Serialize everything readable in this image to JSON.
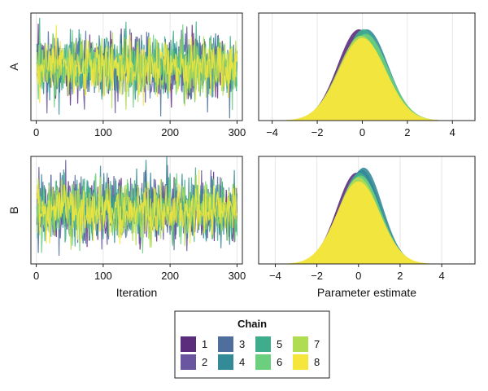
{
  "chart_data": [
    {
      "type": "line",
      "row_label": "A",
      "xlabel": "",
      "ylabel": "A",
      "xlim": [
        -8,
        308
      ],
      "xticks": [
        0,
        100,
        200,
        300
      ],
      "n_iterations": 300,
      "series": [
        {
          "name": "1",
          "mean": 0.05,
          "sd": 1.0
        },
        {
          "name": "2",
          "mean": -0.02,
          "sd": 1.0
        },
        {
          "name": "3",
          "mean": 0.03,
          "sd": 1.0
        },
        {
          "name": "4",
          "mean": 0.0,
          "sd": 1.0
        },
        {
          "name": "5",
          "mean": 0.08,
          "sd": 1.0
        },
        {
          "name": "6",
          "mean": -0.05,
          "sd": 1.0
        },
        {
          "name": "7",
          "mean": 0.02,
          "sd": 1.0
        },
        {
          "name": "8",
          "mean": 0.0,
          "sd": 0.9
        }
      ]
    },
    {
      "type": "area",
      "row_label": "A",
      "xlabel": "",
      "xlim": [
        -4.6,
        5.0
      ],
      "xticks": [
        -4,
        -2,
        0,
        2,
        4
      ],
      "grid": true,
      "series": [
        {
          "name": "1",
          "mean": -0.15,
          "sd": 0.95
        },
        {
          "name": "2",
          "mean": 0.0,
          "sd": 1.0
        },
        {
          "name": "3",
          "mean": 0.1,
          "sd": 1.0
        },
        {
          "name": "4",
          "mean": 0.2,
          "sd": 0.95
        },
        {
          "name": "5",
          "mean": 0.05,
          "sd": 0.95
        },
        {
          "name": "6",
          "mean": 0.15,
          "sd": 1.0
        },
        {
          "name": "7",
          "mean": -0.05,
          "sd": 1.02
        },
        {
          "name": "8",
          "mean": 0.0,
          "sd": 1.05
        }
      ]
    },
    {
      "type": "line",
      "row_label": "B",
      "xlabel": "Iteration",
      "ylabel": "B",
      "xlim": [
        -8,
        308
      ],
      "xticks": [
        0,
        100,
        200,
        300
      ],
      "n_iterations": 300,
      "series": [
        {
          "name": "1",
          "mean": 0.0,
          "sd": 1.0
        },
        {
          "name": "2",
          "mean": 0.02,
          "sd": 1.0
        },
        {
          "name": "3",
          "mean": 0.1,
          "sd": 1.0
        },
        {
          "name": "4",
          "mean": 0.05,
          "sd": 1.0
        },
        {
          "name": "5",
          "mean": 0.0,
          "sd": 1.0
        },
        {
          "name": "6",
          "mean": 0.03,
          "sd": 1.0
        },
        {
          "name": "7",
          "mean": 0.0,
          "sd": 1.0
        },
        {
          "name": "8",
          "mean": -0.02,
          "sd": 0.9
        }
      ]
    },
    {
      "type": "area",
      "row_label": "B",
      "xlabel": "Parameter estimate",
      "xlim": [
        -4.8,
        5.6
      ],
      "xticks": [
        -4,
        -2,
        0,
        2,
        4
      ],
      "grid": true,
      "series": [
        {
          "name": "1",
          "mean": -0.1,
          "sd": 0.95
        },
        {
          "name": "2",
          "mean": 0.0,
          "sd": 0.95
        },
        {
          "name": "3",
          "mean": 0.15,
          "sd": 0.92
        },
        {
          "name": "4",
          "mean": 0.25,
          "sd": 0.9
        },
        {
          "name": "5",
          "mean": 0.05,
          "sd": 0.95
        },
        {
          "name": "6",
          "mean": 0.1,
          "sd": 0.98
        },
        {
          "name": "7",
          "mean": 0.0,
          "sd": 1.0
        },
        {
          "name": "8",
          "mean": 0.0,
          "sd": 1.05
        }
      ]
    }
  ],
  "legend": {
    "title": "Chain",
    "placement": "bottom-center",
    "entries": [
      "1",
      "2",
      "3",
      "4",
      "5",
      "6",
      "7",
      "8"
    ]
  },
  "colors": [
    "#5c2c7c",
    "#6a55a0",
    "#4e6e9e",
    "#338b97",
    "#3fad8c",
    "#6bcf7e",
    "#b0dc52",
    "#f6e63c"
  ]
}
